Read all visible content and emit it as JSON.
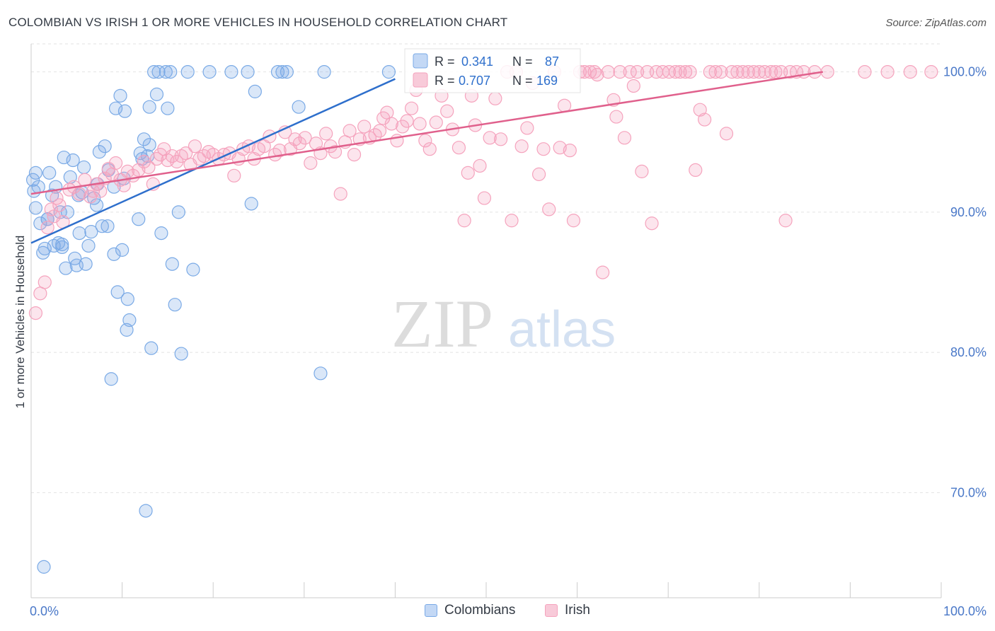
{
  "title": "COLOMBIAN VS IRISH 1 OR MORE VEHICLES IN HOUSEHOLD CORRELATION CHART",
  "source": "Source: ZipAtlas.com",
  "watermark": {
    "zip": "ZIP",
    "atlas": "atlas"
  },
  "chart_data": {
    "type": "scatter",
    "xlabel": "",
    "ylabel": "1 or more Vehicles in Household",
    "xlim": [
      0,
      100
    ],
    "ylim": [
      62.5,
      102
    ],
    "x_tick_labels": [
      {
        "value": 0,
        "label": "0.0%"
      },
      {
        "value": 100,
        "label": "100.0%"
      }
    ],
    "y_ticks": [
      {
        "value": 100,
        "label": "100.0%"
      },
      {
        "value": 90,
        "label": "90.0%"
      },
      {
        "value": 80,
        "label": "80.0%"
      },
      {
        "value": 70,
        "label": "70.0%"
      }
    ],
    "grid": true,
    "legend_placement": "bottom-center",
    "stats_box": {
      "rows": [
        {
          "r_label": "R =",
          "r_value": "0.341",
          "n_label": "N =",
          "n_value": "87"
        },
        {
          "r_label": "R =",
          "r_value": "0.707",
          "n_label": "N =",
          "n_value": "169"
        }
      ]
    },
    "series": [
      {
        "name": "Colombians",
        "color": "#7aaae6",
        "line_color": "#2e6fcc",
        "trend": {
          "x": [
            0,
            40
          ],
          "y": [
            87.8,
            99.5
          ]
        },
        "points": [
          [
            0.2,
            92.3
          ],
          [
            0.3,
            91.5
          ],
          [
            0.5,
            90.3
          ],
          [
            0.8,
            91.8
          ],
          [
            1,
            89.2
          ],
          [
            1.3,
            87.1
          ],
          [
            1.5,
            87.4
          ],
          [
            1.8,
            89.5
          ],
          [
            2,
            92.8
          ],
          [
            2.3,
            91.2
          ],
          [
            2.5,
            87.6
          ],
          [
            2.7,
            91.8
          ],
          [
            3,
            87.8
          ],
          [
            3.2,
            90
          ],
          [
            3.4,
            87.5
          ],
          [
            3.6,
            93.9
          ],
          [
            3.8,
            86
          ],
          [
            4,
            90
          ],
          [
            4.3,
            92.5
          ],
          [
            4.6,
            93.7
          ],
          [
            4.8,
            86.7
          ],
          [
            5,
            86.2
          ],
          [
            5.3,
            88.5
          ],
          [
            5.6,
            91.4
          ],
          [
            5.8,
            93.2
          ],
          [
            6,
            86.3
          ],
          [
            6.3,
            87.6
          ],
          [
            6.6,
            88.6
          ],
          [
            6.9,
            91
          ],
          [
            7.2,
            90.5
          ],
          [
            7.5,
            94.3
          ],
          [
            7.8,
            89
          ],
          [
            8.1,
            94.7
          ],
          [
            8.4,
            89
          ],
          [
            8.5,
            93
          ],
          [
            8.8,
            78.1
          ],
          [
            9.1,
            87
          ],
          [
            9.3,
            97.4
          ],
          [
            9.5,
            84.3
          ],
          [
            9.8,
            98.3
          ],
          [
            10,
            87.3
          ],
          [
            10.2,
            92.4
          ],
          [
            10.3,
            97.2
          ],
          [
            10.6,
            83.8
          ],
          [
            10.8,
            82.3
          ],
          [
            10.5,
            81.6
          ],
          [
            11.8,
            89.5
          ],
          [
            12,
            94.2
          ],
          [
            12.4,
            95.2
          ],
          [
            12.6,
            68.7
          ],
          [
            12.8,
            94
          ],
          [
            13,
            94.8
          ],
          [
            13,
            97.5
          ],
          [
            13.2,
            80.3
          ],
          [
            13.5,
            100
          ],
          [
            13.8,
            98.4
          ],
          [
            14,
            100
          ],
          [
            14.3,
            88.5
          ],
          [
            14.8,
            100
          ],
          [
            15,
            97.4
          ],
          [
            15.3,
            100
          ],
          [
            15.5,
            86.3
          ],
          [
            15.8,
            83.4
          ],
          [
            16.2,
            90
          ],
          [
            16.5,
            79.9
          ],
          [
            17.2,
            100
          ],
          [
            17.8,
            85.9
          ],
          [
            19.6,
            100
          ],
          [
            22,
            100
          ],
          [
            23.8,
            100
          ],
          [
            24.2,
            90.6
          ],
          [
            24.6,
            98.6
          ],
          [
            27.1,
            100
          ],
          [
            27.6,
            100
          ],
          [
            28.1,
            100
          ],
          [
            29.4,
            97.5
          ],
          [
            31.8,
            78.5
          ],
          [
            32.2,
            100
          ],
          [
            39.3,
            100
          ],
          [
            0.5,
            92.8
          ],
          [
            1.8,
            89.5
          ],
          [
            3.4,
            87.7
          ],
          [
            5.2,
            91.2
          ],
          [
            7.3,
            92
          ],
          [
            9.1,
            91.8
          ],
          [
            1.4,
            64.7
          ],
          [
            12.2,
            93.8
          ]
        ]
      },
      {
        "name": "Irish",
        "color": "#f5a3bd",
        "line_color": "#e0608c",
        "trend": {
          "x": [
            0,
            87
          ],
          "y": [
            91.3,
            100
          ]
        },
        "points": [
          [
            0.5,
            82.8
          ],
          [
            1,
            84.2
          ],
          [
            1.5,
            85
          ],
          [
            1.8,
            88.9
          ],
          [
            2.2,
            90.2
          ],
          [
            2.5,
            89.7
          ],
          [
            2.8,
            91
          ],
          [
            3.1,
            90.5
          ],
          [
            3.5,
            89.3
          ],
          [
            4.2,
            91.6
          ],
          [
            4.7,
            91.8
          ],
          [
            5.3,
            91.3
          ],
          [
            5.9,
            92.3
          ],
          [
            6.5,
            91.1
          ],
          [
            6.8,
            91.5
          ],
          [
            7.2,
            92
          ],
          [
            7.6,
            91.5
          ],
          [
            8.1,
            92.4
          ],
          [
            8.5,
            93.1
          ],
          [
            8.9,
            92.7
          ],
          [
            9.3,
            93.5
          ],
          [
            9.8,
            92.3
          ],
          [
            10.2,
            91.9
          ],
          [
            10.6,
            92.9
          ],
          [
            11.2,
            92.6
          ],
          [
            11.8,
            93
          ],
          [
            12.4,
            93.6
          ],
          [
            12.9,
            93.2
          ],
          [
            13.4,
            92
          ],
          [
            13.8,
            93.8
          ],
          [
            14.2,
            94.1
          ],
          [
            14.6,
            94.5
          ],
          [
            15,
            93.7
          ],
          [
            15.5,
            94
          ],
          [
            16,
            93.6
          ],
          [
            16.5,
            94
          ],
          [
            17,
            94.2
          ],
          [
            17.5,
            93.4
          ],
          [
            18,
            94.7
          ],
          [
            18.5,
            93.8
          ],
          [
            19,
            94
          ],
          [
            19.5,
            94.3
          ],
          [
            20,
            94.1
          ],
          [
            20.6,
            93.8
          ],
          [
            21.2,
            94.1
          ],
          [
            21.8,
            94.2
          ],
          [
            22.3,
            92.6
          ],
          [
            22.8,
            93.8
          ],
          [
            23.3,
            94.5
          ],
          [
            23.9,
            94.7
          ],
          [
            24.5,
            93.8
          ],
          [
            25,
            94.5
          ],
          [
            25.6,
            94.7
          ],
          [
            26.2,
            95.4
          ],
          [
            26.8,
            94.1
          ],
          [
            27.3,
            94.4
          ],
          [
            27.9,
            95.7
          ],
          [
            28.5,
            94.5
          ],
          [
            29,
            95.2
          ],
          [
            29.5,
            94.9
          ],
          [
            30.1,
            95.3
          ],
          [
            30.7,
            93.5
          ],
          [
            31.3,
            94.9
          ],
          [
            31.8,
            94.2
          ],
          [
            32.4,
            95.6
          ],
          [
            32.9,
            94.7
          ],
          [
            33.4,
            94.3
          ],
          [
            34,
            91.3
          ],
          [
            34.5,
            95
          ],
          [
            35,
            95.8
          ],
          [
            35.5,
            94.1
          ],
          [
            36.1,
            95.2
          ],
          [
            36.6,
            96.1
          ],
          [
            37.2,
            95.3
          ],
          [
            37.8,
            95.5
          ],
          [
            38.3,
            95.8
          ],
          [
            38.7,
            96.7
          ],
          [
            39.1,
            97.1
          ],
          [
            39.6,
            96.3
          ],
          [
            40.2,
            95.1
          ],
          [
            40.8,
            96.1
          ],
          [
            41.3,
            96.5
          ],
          [
            41.8,
            97.4
          ],
          [
            42.3,
            98.7
          ],
          [
            42.7,
            96.3
          ],
          [
            43.3,
            95.1
          ],
          [
            43.8,
            94.5
          ],
          [
            44.5,
            96.4
          ],
          [
            45.1,
            98.3
          ],
          [
            45.7,
            97.2
          ],
          [
            46.3,
            95.9
          ],
          [
            47,
            94.6
          ],
          [
            47.6,
            89.4
          ],
          [
            48,
            92.8
          ],
          [
            48.4,
            98.3
          ],
          [
            48.8,
            96.2
          ],
          [
            49.3,
            93.3
          ],
          [
            49.8,
            91
          ],
          [
            50.4,
            95.3
          ],
          [
            51,
            98.1
          ],
          [
            51.6,
            95.2
          ],
          [
            52.3,
            100
          ],
          [
            52.8,
            89.4
          ],
          [
            53.3,
            100
          ],
          [
            53.9,
            94.7
          ],
          [
            54.5,
            96
          ],
          [
            55.1,
            99.2
          ],
          [
            55.8,
            92.7
          ],
          [
            56.3,
            94.5
          ],
          [
            56.9,
            90.2
          ],
          [
            57.5,
            100
          ],
          [
            58.1,
            94.6
          ],
          [
            58.6,
            97.6
          ],
          [
            59.2,
            94.4
          ],
          [
            59.6,
            89.4
          ],
          [
            60.3,
            100
          ],
          [
            60.8,
            100
          ],
          [
            61.4,
            100
          ],
          [
            61.9,
            100
          ],
          [
            62.2,
            99.8
          ],
          [
            62.8,
            85.7
          ],
          [
            63.4,
            100
          ],
          [
            64,
            98
          ],
          [
            64.3,
            96.8
          ],
          [
            64.7,
            100
          ],
          [
            65.2,
            95.3
          ],
          [
            65.8,
            100
          ],
          [
            66.2,
            99
          ],
          [
            66.6,
            100
          ],
          [
            67.1,
            92.9
          ],
          [
            67.7,
            100
          ],
          [
            68.2,
            89.2
          ],
          [
            68.7,
            100
          ],
          [
            69.4,
            100
          ],
          [
            70.1,
            100
          ],
          [
            70.8,
            100
          ],
          [
            71.3,
            100
          ],
          [
            71.9,
            100
          ],
          [
            72.4,
            100
          ],
          [
            73,
            93
          ],
          [
            73.5,
            97.3
          ],
          [
            74,
            96.6
          ],
          [
            74.6,
            100
          ],
          [
            75.2,
            100
          ],
          [
            75.8,
            100
          ],
          [
            76.4,
            95.6
          ],
          [
            77,
            100
          ],
          [
            77.6,
            100
          ],
          [
            78.2,
            100
          ],
          [
            78.8,
            100
          ],
          [
            79.4,
            100
          ],
          [
            80,
            100
          ],
          [
            80.6,
            100
          ],
          [
            81.3,
            100
          ],
          [
            81.8,
            100
          ],
          [
            82.4,
            100
          ],
          [
            82.9,
            89.4
          ],
          [
            83.4,
            100
          ],
          [
            84.1,
            100
          ],
          [
            84.9,
            100
          ],
          [
            86.1,
            100
          ],
          [
            87.5,
            100
          ],
          [
            91.6,
            100
          ],
          [
            94.1,
            100
          ],
          [
            96.6,
            100
          ],
          [
            98.9,
            100
          ]
        ]
      }
    ]
  }
}
